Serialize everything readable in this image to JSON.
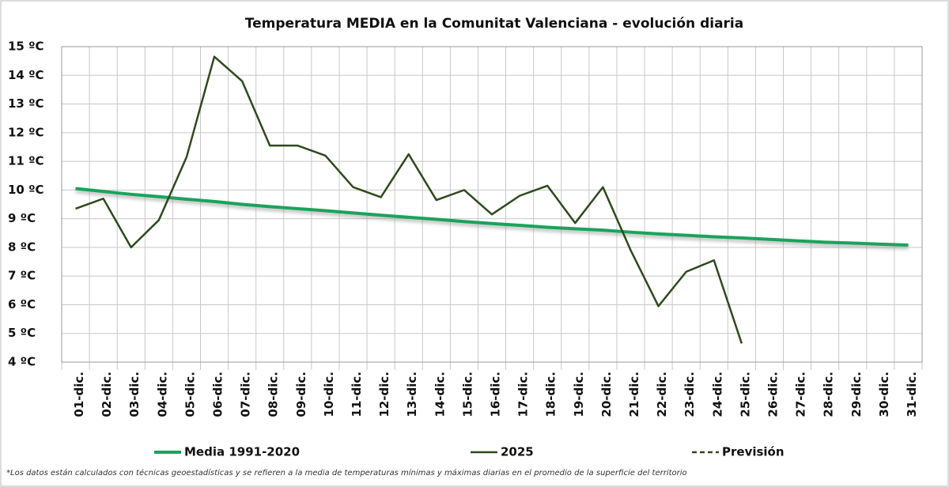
{
  "chart_data": {
    "type": "line",
    "title": "Temperatura MEDIA en la Comunitat Valenciana - evolución diaria",
    "categories": [
      "01-dic.",
      "02-dic.",
      "03-dic.",
      "04-dic.",
      "05-dic.",
      "06-dic.",
      "07-dic.",
      "08-dic.",
      "09-dic.",
      "10-dic.",
      "11-dic.",
      "12-dic.",
      "13-dic.",
      "14-dic.",
      "15-dic.",
      "16-dic.",
      "17-dic.",
      "18-dic.",
      "19-dic.",
      "20-dic.",
      "21-dic.",
      "22-dic.",
      "23-dic.",
      "24-dic.",
      "25-dic.",
      "26-dic.",
      "27-dic.",
      "28-dic.",
      "29-dic.",
      "30-dic.",
      "31-dic."
    ],
    "series": [
      {
        "name": "Media 1991-2020",
        "color": "#1aa35a",
        "dash": false,
        "width": 4,
        "values": [
          10.05,
          9.95,
          9.85,
          9.77,
          9.68,
          9.6,
          9.5,
          9.42,
          9.35,
          9.28,
          9.2,
          9.12,
          9.05,
          8.98,
          8.9,
          8.83,
          8.77,
          8.7,
          8.65,
          8.6,
          8.53,
          8.47,
          8.42,
          8.37,
          8.33,
          8.28,
          8.23,
          8.18,
          8.15,
          8.11,
          8.08
        ]
      },
      {
        "name": "2025",
        "color": "#2e4a1e",
        "dash": false,
        "width": 2.5,
        "values": [
          9.35,
          9.7,
          8.0,
          8.95,
          11.15,
          14.65,
          13.8,
          11.55,
          11.55,
          11.2,
          10.1,
          9.75,
          11.25,
          9.65,
          10.0,
          9.15,
          9.8,
          10.15,
          8.85,
          10.1,
          7.9,
          5.95,
          7.15,
          7.55,
          4.65,
          null,
          null,
          null,
          null,
          null,
          null
        ]
      },
      {
        "name": "Previsión",
        "color": "#2e4a1e",
        "dash": true,
        "width": 2.5,
        "values": [
          null,
          null,
          null,
          null,
          null,
          null,
          null,
          null,
          null,
          null,
          null,
          null,
          null,
          null,
          null,
          null,
          null,
          null,
          null,
          null,
          null,
          null,
          null,
          null,
          null,
          null,
          null,
          null,
          null,
          null,
          null
        ]
      }
    ],
    "ylim": [
      4,
      15
    ],
    "yticks": [
      {
        "value": 4,
        "label": "4 ºC"
      },
      {
        "value": 5,
        "label": "5 ºC"
      },
      {
        "value": 6,
        "label": "6 ºC"
      },
      {
        "value": 7,
        "label": "7 ºC"
      },
      {
        "value": 8,
        "label": "8 ºC"
      },
      {
        "value": 9,
        "label": "9 ºC"
      },
      {
        "value": 10,
        "label": "10 ºC"
      },
      {
        "value": 11,
        "label": "11 ºC"
      },
      {
        "value": 12,
        "label": "12 ºC"
      },
      {
        "value": 13,
        "label": "13 ºC"
      },
      {
        "value": 14,
        "label": "14 ºC"
      },
      {
        "value": 15,
        "label": "15 ºC"
      }
    ],
    "grid": true,
    "legend": "bottom",
    "footnote": "*Los datos están calculados con técnicas geoestadísticas y se refieren a la media de temperaturas mínimas y máximas diarias en el promedio de la superficie del territorio"
  }
}
